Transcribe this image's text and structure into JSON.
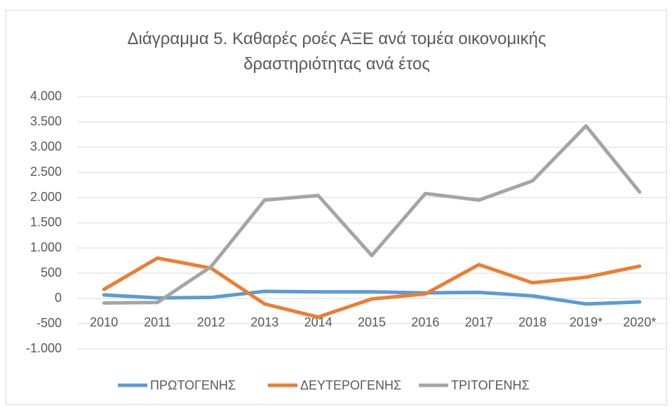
{
  "chart_data": {
    "type": "line",
    "title": "Διάγραμμα 5. Καθαρές ροές ΑΞΕ ανά τομέα οικονομικής δραστηριότητας ανά έτος",
    "categories": [
      "2010",
      "2011",
      "2012",
      "2013",
      "2014",
      "2015",
      "2016",
      "2017",
      "2018",
      "2019*",
      "2020*"
    ],
    "series": [
      {
        "name": "ΠΡΩΤΟΓΕΝΗΣ",
        "color": "#5b9bd5",
        "values": [
          70,
          10,
          20,
          140,
          130,
          130,
          110,
          120,
          50,
          -110,
          -70
        ]
      },
      {
        "name": "ΔΕΥΤΕΡΟΓΕΝΗΣ",
        "color": "#ed7d31",
        "values": [
          180,
          800,
          600,
          -110,
          -370,
          -10,
          90,
          670,
          310,
          420,
          640
        ]
      },
      {
        "name": "ΤΡΙΤΟΓΕΝΗΣ",
        "color": "#a5a5a5",
        "values": [
          -90,
          -80,
          630,
          1950,
          2040,
          850,
          2080,
          1950,
          2330,
          3420,
          2110
        ]
      }
    ],
    "ylim": [
      -1000,
      4000
    ],
    "yticks": [
      {
        "value": -1000,
        "label": "-1.000"
      },
      -500,
      0,
      500,
      {
        "value": 1000,
        "label": "1.000"
      },
      {
        "value": 1500,
        "label": "1.500"
      },
      {
        "value": 2000,
        "label": "2.000"
      },
      {
        "value": 2500,
        "label": "2.500"
      },
      {
        "value": 3000,
        "label": "3.000"
      },
      {
        "value": 3500,
        "label": "3.500"
      },
      {
        "value": 4000,
        "label": "4.000"
      }
    ],
    "grid": true,
    "legend": "bottom"
  }
}
